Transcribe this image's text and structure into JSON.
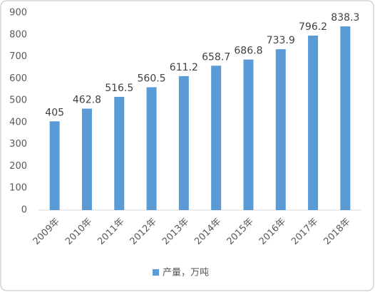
{
  "chart_data": {
    "type": "bar",
    "categories": [
      "2009年",
      "2010年",
      "2011年",
      "2012年",
      "2013年",
      "2014年",
      "2015年",
      "2016年",
      "2017年",
      "2018年"
    ],
    "series": [
      {
        "name": "产量，万吨",
        "color": "#5b9bd5",
        "values": [
          405,
          462.8,
          516.5,
          560.5,
          611.2,
          658.7,
          686.8,
          733.9,
          796.2,
          838.3
        ]
      }
    ],
    "ylim": [
      0,
      900
    ],
    "yticks": [
      0,
      100,
      200,
      300,
      400,
      500,
      600,
      700,
      800,
      900
    ],
    "grid": false,
    "legend": "bottom"
  }
}
